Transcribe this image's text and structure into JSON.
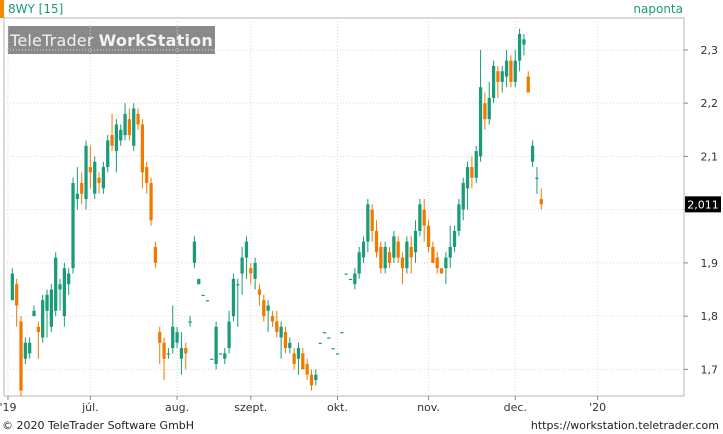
{
  "header": {
    "instrument": "8WY [15]",
    "interval": "naponta"
  },
  "logo": {
    "part1": "TeleTrader",
    "part2": "WorkStation"
  },
  "footer": {
    "copyright": "© 2020 TeleTrader Software GmbH",
    "url": "https://workstation.teletrader.com"
  },
  "colors": {
    "up": "#1a9b7a",
    "down": "#f07a00",
    "accent": "#f08a00",
    "grid": "#d9d9d9"
  },
  "chart_data": {
    "type": "ohlc-bar",
    "last_price_label": "2,011",
    "y_ticks": [
      1.7,
      1.8,
      1.9,
      2.0,
      2.1,
      2.2,
      2.3
    ],
    "y_tick_labels": [
      "1,7",
      "1,8",
      "1,9",
      "",
      "2,1",
      "2,2",
      "2,3"
    ],
    "ylim": [
      1.65,
      2.36
    ],
    "x_labels": [
      {
        "label": "'19",
        "day": 0
      },
      {
        "label": "júl.",
        "day": 19
      },
      {
        "label": "aug.",
        "day": 39
      },
      {
        "label": "szept.",
        "day": 56
      },
      {
        "label": "okt.",
        "day": 76
      },
      {
        "label": "nov.",
        "day": 97
      },
      {
        "label": "dec.",
        "day": 117
      },
      {
        "label": "'20",
        "day": 136
      }
    ],
    "total_days": 155,
    "series": [
      {
        "bars": [
          [
            1.83,
            1.88,
            1.83,
            1.89,
            1.83
          ],
          [
            1.86,
            1.82,
            1.78,
            1.87,
            1.78
          ],
          [
            1.79,
            1.66,
            1.65,
            1.8,
            1.66
          ],
          [
            1.72,
            1.75,
            1.71,
            1.76,
            1.71
          ],
          [
            1.73,
            1.75,
            1.72,
            1.76,
            1.72
          ],
          [
            1.8,
            1.81,
            1.8,
            1.82,
            1.8
          ],
          [
            1.78,
            1.77,
            1.72,
            1.79,
            1.72
          ],
          [
            1.76,
            1.83,
            1.75,
            1.84,
            1.75
          ],
          [
            1.81,
            1.84,
            1.76,
            1.85,
            1.76
          ],
          [
            1.78,
            1.85,
            1.77,
            1.86,
            1.77
          ],
          [
            1.81,
            1.91,
            1.8,
            1.92,
            1.8
          ],
          [
            1.85,
            1.86,
            1.81,
            1.87,
            1.81
          ],
          [
            1.8,
            1.89,
            1.78,
            1.9,
            1.78
          ],
          [
            1.86,
            1.88,
            1.84,
            1.89,
            1.84
          ],
          [
            1.89,
            2.05,
            1.88,
            2.06,
            1.88
          ],
          [
            2.02,
            2.03,
            2.0,
            2.08,
            2.0
          ],
          [
            2.05,
            2.03,
            2.01,
            2.07,
            2.01
          ],
          [
            2.02,
            2.12,
            2.0,
            2.13,
            2.0
          ],
          [
            2.08,
            2.07,
            2.04,
            2.12,
            2.04
          ],
          [
            2.03,
            2.09,
            2.02,
            2.1,
            2.02
          ],
          [
            2.06,
            2.05,
            2.03,
            2.07,
            2.03
          ],
          [
            2.04,
            2.08,
            2.03,
            2.09,
            2.03
          ],
          [
            2.08,
            2.13,
            2.07,
            2.14,
            2.07
          ],
          [
            2.14,
            2.12,
            2.11,
            2.18,
            2.11
          ],
          [
            2.11,
            2.16,
            2.07,
            2.17,
            2.07
          ],
          [
            2.13,
            2.15,
            2.12,
            2.16,
            2.12
          ],
          [
            2.14,
            2.18,
            2.13,
            2.2,
            2.13
          ],
          [
            2.17,
            2.14,
            2.13,
            2.19,
            2.13
          ],
          [
            2.12,
            2.19,
            2.11,
            2.2,
            2.11
          ],
          [
            2.18,
            2.16,
            2.15,
            2.19,
            2.15
          ],
          [
            2.16,
            2.07,
            2.04,
            2.17,
            2.04
          ],
          [
            2.08,
            2.05,
            2.03,
            2.09,
            2.03
          ],
          [
            2.05,
            1.98,
            1.97,
            2.06,
            1.97
          ],
          [
            1.93,
            1.9,
            1.89,
            1.94,
            1.89
          ],
          [
            1.77,
            1.75,
            1.71,
            1.78,
            1.71
          ],
          [
            1.75,
            1.72,
            1.68,
            1.76,
            1.68
          ],
          [
            1.73,
            1.73,
            1.72,
            1.74,
            1.72
          ],
          [
            1.74,
            1.78,
            1.73,
            1.82,
            1.73
          ],
          [
            1.75,
            1.77,
            1.74,
            1.78,
            1.74
          ],
          [
            1.72,
            1.74,
            1.69,
            1.77,
            1.68
          ],
          [
            1.74,
            1.73,
            1.7,
            1.75,
            1.69
          ],
          [
            1.79,
            1.79,
            1.78,
            1.8,
            1.78
          ],
          [
            1.9,
            1.94,
            1.89,
            1.95,
            1.89
          ],
          [
            1.86,
            1.87,
            1.86,
            1.87,
            1.86
          ],
          [
            1.84,
            1.84,
            1.84,
            1.84,
            1.84
          ],
          [
            1.83,
            1.83,
            1.83,
            1.83,
            1.83
          ],
          [
            1.72,
            1.72,
            1.72,
            1.72,
            1.72
          ],
          [
            1.71,
            1.78,
            1.7,
            1.79,
            1.7
          ],
          [
            1.73,
            1.73,
            1.73,
            1.73,
            1.73
          ],
          [
            1.72,
            1.73,
            1.71,
            1.74,
            1.71
          ],
          [
            1.74,
            1.79,
            1.73,
            1.81,
            1.73
          ],
          [
            1.8,
            1.87,
            1.79,
            1.88,
            1.79
          ],
          [
            1.86,
            1.86,
            1.78,
            1.87,
            1.78
          ],
          [
            1.88,
            1.91,
            1.84,
            1.93,
            1.84
          ],
          [
            1.91,
            1.94,
            1.87,
            1.95,
            1.87
          ],
          [
            1.89,
            1.88,
            1.86,
            1.9,
            1.86
          ],
          [
            1.87,
            1.9,
            1.85,
            1.91,
            1.85
          ],
          [
            1.85,
            1.84,
            1.82,
            1.86,
            1.82
          ],
          [
            1.83,
            1.8,
            1.79,
            1.84,
            1.79
          ],
          [
            1.81,
            1.82,
            1.77,
            1.83,
            1.77
          ],
          [
            1.8,
            1.79,
            1.78,
            1.81,
            1.78
          ],
          [
            1.79,
            1.77,
            1.76,
            1.81,
            1.76
          ],
          [
            1.76,
            1.78,
            1.72,
            1.79,
            1.72
          ],
          [
            1.77,
            1.74,
            1.73,
            1.78,
            1.73
          ],
          [
            1.74,
            1.75,
            1.73,
            1.76,
            1.73
          ],
          [
            1.73,
            1.71,
            1.7,
            1.74,
            1.7
          ],
          [
            1.72,
            1.74,
            1.69,
            1.75,
            1.69
          ],
          [
            1.73,
            1.7,
            1.7,
            1.74,
            1.7
          ],
          [
            1.71,
            1.69,
            1.68,
            1.72,
            1.68
          ],
          [
            1.69,
            1.67,
            1.66,
            1.7,
            1.66
          ],
          [
            1.68,
            1.69,
            1.67,
            1.7,
            1.67
          ],
          [
            1.75,
            1.75,
            1.75,
            1.75,
            1.75
          ],
          [
            1.77,
            1.77,
            1.77,
            1.77,
            1.77
          ],
          [
            1.76,
            1.76,
            1.76,
            1.76,
            1.76
          ],
          [
            1.74,
            1.74,
            1.74,
            1.74,
            1.74
          ],
          [
            1.73,
            1.73,
            1.73,
            1.73,
            1.73
          ],
          [
            1.77,
            1.77,
            1.77,
            1.77,
            1.77
          ],
          [
            1.88,
            1.88,
            1.88,
            1.88,
            1.88
          ],
          [
            1.87,
            1.87,
            1.87,
            1.87,
            1.87
          ],
          [
            1.86,
            1.88,
            1.85,
            1.89,
            1.85
          ],
          [
            1.88,
            1.92,
            1.87,
            1.93,
            1.87
          ],
          [
            1.91,
            1.94,
            1.9,
            1.95,
            1.9
          ],
          [
            1.94,
            2.01,
            1.92,
            2.02,
            1.92
          ],
          [
            2.0,
            1.96,
            1.94,
            2.01,
            1.94
          ],
          [
            1.96,
            1.92,
            1.91,
            1.98,
            1.91
          ],
          [
            1.93,
            1.89,
            1.88,
            1.94,
            1.88
          ],
          [
            1.89,
            1.93,
            1.88,
            1.94,
            1.88
          ],
          [
            1.92,
            1.9,
            1.89,
            1.93,
            1.89
          ],
          [
            1.91,
            1.95,
            1.9,
            1.96,
            1.9
          ],
          [
            1.94,
            1.91,
            1.9,
            1.95,
            1.9
          ],
          [
            1.91,
            1.89,
            1.86,
            1.92,
            1.86
          ],
          [
            1.89,
            1.94,
            1.88,
            1.95,
            1.88
          ],
          [
            1.93,
            1.91,
            1.88,
            1.95,
            1.88
          ],
          [
            1.92,
            1.96,
            1.9,
            1.98,
            1.9
          ],
          [
            1.96,
            2.01,
            1.95,
            2.02,
            1.95
          ],
          [
            2.0,
            1.97,
            1.94,
            2.02,
            1.94
          ],
          [
            1.97,
            1.93,
            1.92,
            1.98,
            1.92
          ],
          [
            1.93,
            1.9,
            1.9,
            1.94,
            1.9
          ],
          [
            1.91,
            1.89,
            1.88,
            1.92,
            1.88
          ],
          [
            1.89,
            1.88,
            1.88,
            1.89,
            1.88
          ],
          [
            1.89,
            1.91,
            1.86,
            1.92,
            1.86
          ],
          [
            1.91,
            1.93,
            1.89,
            1.97,
            1.89
          ],
          [
            1.93,
            1.96,
            1.92,
            1.97,
            1.92
          ],
          [
            1.96,
            2.01,
            1.95,
            2.02,
            1.95
          ],
          [
            2.0,
            2.05,
            1.98,
            2.06,
            1.98
          ],
          [
            2.04,
            2.08,
            2.0,
            2.09,
            2.0
          ],
          [
            2.08,
            2.06,
            2.04,
            2.1,
            2.04
          ],
          [
            2.06,
            2.11,
            2.05,
            2.12,
            2.05
          ],
          [
            2.1,
            2.23,
            2.09,
            2.3,
            2.09
          ],
          [
            2.2,
            2.17,
            2.15,
            2.22,
            2.15
          ],
          [
            2.17,
            2.21,
            2.16,
            2.24,
            2.16
          ],
          [
            2.21,
            2.27,
            2.2,
            2.28,
            2.2
          ],
          [
            2.26,
            2.24,
            2.21,
            2.27,
            2.21
          ],
          [
            2.24,
            2.26,
            2.22,
            2.27,
            2.22
          ],
          [
            2.25,
            2.28,
            2.23,
            2.3,
            2.23
          ],
          [
            2.28,
            2.24,
            2.23,
            2.29,
            2.23
          ],
          [
            2.24,
            2.28,
            2.23,
            2.3,
            2.23
          ],
          [
            2.28,
            2.33,
            2.26,
            2.34,
            2.26
          ],
          [
            2.31,
            2.32,
            2.29,
            2.33,
            2.29
          ],
          [
            2.25,
            2.22,
            2.22,
            2.26,
            2.22
          ],
          [
            2.09,
            2.12,
            2.08,
            2.13,
            2.08
          ],
          [
            2.06,
            2.06,
            2.03,
            2.08,
            2.03
          ],
          [
            2.02,
            2.01,
            2.0,
            2.04,
            2.0
          ]
        ]
      }
    ]
  }
}
